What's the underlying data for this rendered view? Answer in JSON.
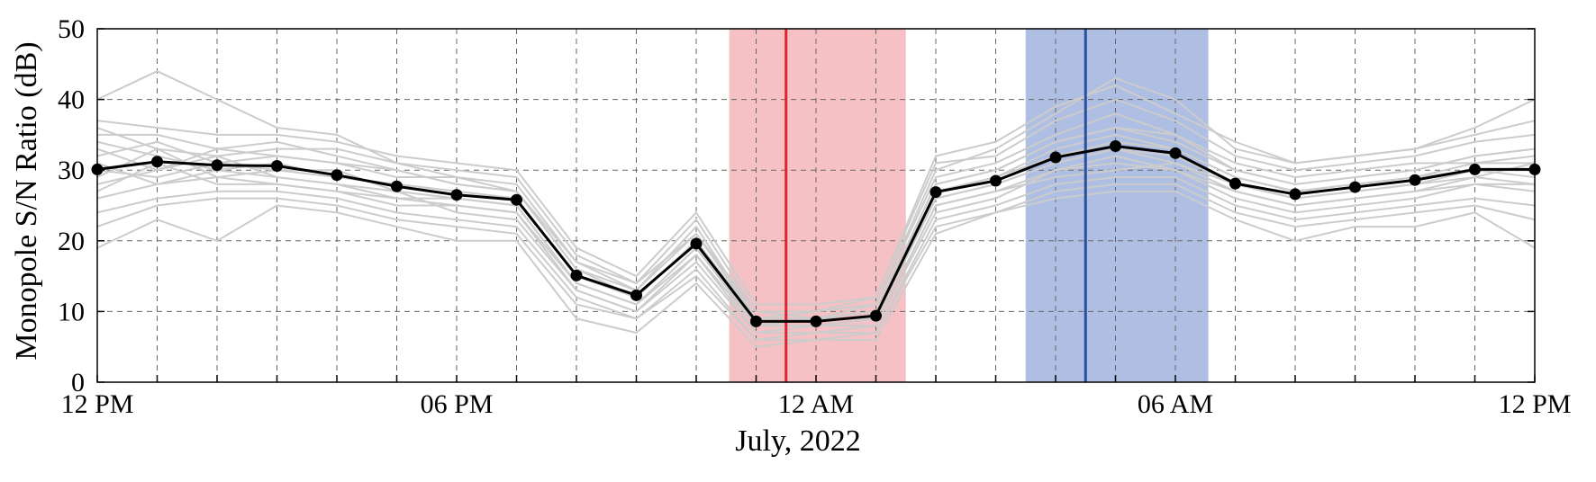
{
  "chart_data": {
    "type": "line",
    "xlabel": "July, 2022",
    "ylabel": "Monopole S/N Ratio (dB)",
    "ylim": [
      0,
      50
    ],
    "yticks": [
      0,
      10,
      20,
      30,
      40,
      50
    ],
    "x_hours": [
      0,
      1,
      2,
      3,
      4,
      5,
      6,
      7,
      8,
      9,
      10,
      11,
      12,
      13,
      14,
      15,
      16,
      17,
      18,
      19,
      20,
      21,
      22,
      23,
      24
    ],
    "x_range_hours": [
      0,
      24
    ],
    "xticks": [
      {
        "hour": 0,
        "label": "12 PM"
      },
      {
        "hour": 6,
        "label": "06 PM"
      },
      {
        "hour": 12,
        "label": "12 AM"
      },
      {
        "hour": 18,
        "label": "06 AM"
      },
      {
        "hour": 24,
        "label": "12 PM"
      }
    ],
    "grid": true,
    "mean_series": {
      "color": "#000000",
      "values": [
        30.1,
        31.2,
        30.7,
        30.6,
        29.3,
        27.7,
        26.5,
        25.8,
        15.1,
        12.3,
        19.6,
        8.6,
        8.6,
        9.4,
        26.9,
        28.5,
        31.8,
        33.4,
        32.4,
        28.1,
        26.6,
        27.6,
        28.6,
        30.1,
        30.1
      ]
    },
    "background_series": {
      "color": "#cccccc",
      "series": [
        [
          40,
          44,
          40,
          36,
          35,
          31,
          29,
          27,
          17,
          14,
          21,
          10,
          9,
          11,
          30,
          33,
          38,
          43,
          40,
          33,
          31,
          32,
          33,
          36,
          40
        ],
        [
          19,
          23,
          20,
          25,
          24,
          22,
          20,
          20,
          9,
          7,
          14,
          5,
          6,
          6,
          21,
          24,
          26,
          27,
          27,
          23,
          20,
          22,
          22,
          24,
          19
        ],
        [
          35,
          35,
          33,
          34,
          32,
          30,
          28,
          27,
          16,
          12,
          20,
          9,
          9,
          10,
          28,
          30,
          34,
          36,
          34,
          30,
          28,
          29,
          30,
          32,
          33
        ],
        [
          26,
          28,
          29,
          28,
          27,
          26,
          25,
          24,
          14,
          11,
          18,
          8,
          8,
          8,
          25,
          27,
          29,
          30,
          31,
          27,
          25,
          26,
          27,
          28,
          27
        ],
        [
          32,
          34,
          31,
          32,
          31,
          29,
          29,
          28,
          17,
          13,
          22,
          9,
          10,
          11,
          29,
          31,
          35,
          38,
          35,
          31,
          29,
          30,
          31,
          31,
          32
        ],
        [
          28,
          30,
          32,
          29,
          28,
          27,
          24,
          23,
          13,
          10,
          17,
          7,
          7,
          8,
          24,
          26,
          30,
          32,
          30,
          26,
          24,
          25,
          26,
          28,
          28
        ],
        [
          34,
          32,
          30,
          31,
          29,
          28,
          27,
          26,
          15,
          12,
          20,
          8,
          9,
          9,
          27,
          29,
          33,
          35,
          33,
          29,
          27,
          28,
          29,
          31,
          31
        ],
        [
          24,
          26,
          27,
          27,
          26,
          24,
          23,
          22,
          12,
          9,
          16,
          6,
          7,
          7,
          23,
          25,
          28,
          29,
          29,
          25,
          23,
          24,
          25,
          26,
          25
        ],
        [
          36,
          33,
          32,
          33,
          33,
          31,
          30,
          29,
          18,
          14,
          23,
          10,
          10,
          12,
          31,
          32,
          37,
          40,
          37,
          32,
          30,
          31,
          32,
          34,
          35
        ],
        [
          30,
          29,
          31,
          30,
          30,
          27,
          26,
          25,
          14,
          11,
          19,
          8,
          8,
          9,
          26,
          28,
          31,
          33,
          32,
          28,
          26,
          27,
          28,
          30,
          30
        ],
        [
          27,
          31,
          28,
          28,
          27,
          25,
          25,
          24,
          13,
          10,
          18,
          7,
          8,
          8,
          25,
          27,
          30,
          31,
          30,
          27,
          25,
          26,
          27,
          29,
          28
        ],
        [
          33,
          30,
          33,
          32,
          31,
          30,
          28,
          27,
          16,
          13,
          21,
          9,
          9,
          10,
          28,
          30,
          34,
          36,
          35,
          30,
          28,
          29,
          30,
          32,
          33
        ],
        [
          22,
          25,
          26,
          26,
          25,
          23,
          22,
          21,
          11,
          9,
          15,
          6,
          6,
          7,
          22,
          24,
          27,
          28,
          28,
          24,
          22,
          23,
          24,
          25,
          23
        ],
        [
          37,
          36,
          35,
          35,
          34,
          32,
          31,
          30,
          19,
          15,
          24,
          11,
          11,
          12,
          32,
          34,
          39,
          42,
          38,
          34,
          31,
          32,
          33,
          35,
          37
        ],
        [
          29,
          33,
          29,
          30,
          29,
          28,
          27,
          26,
          15,
          12,
          20,
          8,
          9,
          10,
          27,
          29,
          32,
          34,
          33,
          29,
          27,
          28,
          29,
          30,
          29
        ],
        [
          31,
          28,
          30,
          29,
          28,
          26,
          26,
          25,
          14,
          11,
          19,
          8,
          8,
          9,
          26,
          28,
          31,
          33,
          31,
          28,
          26,
          27,
          28,
          29,
          31
        ]
      ]
    },
    "shaded_regions": [
      {
        "x_start_hours": 10.55,
        "x_end_hours": 13.5,
        "color": "#f6c1c5",
        "line_x_hours": 11.5,
        "line_color": "#e0232b"
      },
      {
        "x_start_hours": 15.5,
        "x_end_hours": 18.55,
        "color": "#aebfe3",
        "line_x_hours": 16.5,
        "line_color": "#2a4f9e"
      }
    ]
  }
}
